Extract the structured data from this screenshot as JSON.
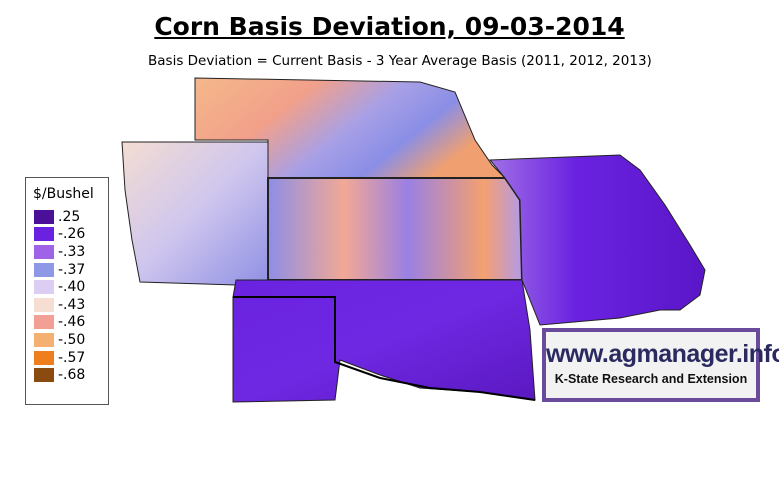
{
  "title": "Corn Basis Deviation, 09-03-2014",
  "subtitle": "Basis Deviation = Current Basis - 3 Year Average Basis (2011, 2012, 2013)",
  "legend": {
    "title": "$/Bushel",
    "items": [
      {
        "label": ".25",
        "color": "#4a1198"
      },
      {
        "label": "-.26",
        "color": "#6b22e0"
      },
      {
        "label": "-.33",
        "color": "#9e63e6"
      },
      {
        "label": "-.37",
        "color": "#8e98e6"
      },
      {
        "label": "-.40",
        "color": "#dccdf2"
      },
      {
        "label": "-.43",
        "color": "#f6dfd2"
      },
      {
        "label": "-.46",
        "color": "#f2a096"
      },
      {
        "label": "-.50",
        "color": "#f4b070"
      },
      {
        "label": "-.57",
        "color": "#ef7f1e"
      },
      {
        "label": "-.68",
        "color": "#8a4a10"
      }
    ]
  },
  "logo": {
    "url": "www.agmanager.info",
    "org": "K-State Research and Extension"
  }
}
